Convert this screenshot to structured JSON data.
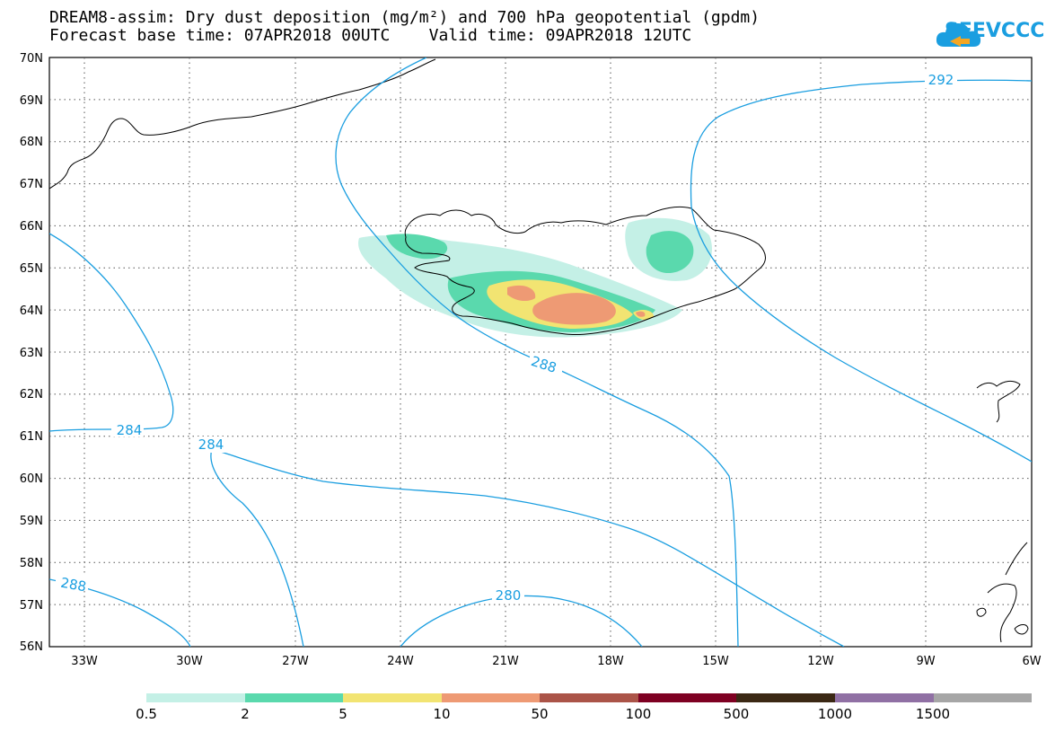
{
  "title": {
    "line1": "DREAM8-assim: Dry dust deposition (mg/m²) and 700 hPa geopotential (gpdm)",
    "line2": "Forecast base time: 07APR2018 00UTC    Valid time: 09APR2018 12UTC"
  },
  "logo": {
    "text": "SEEVCCC",
    "icon": "cloud-icon",
    "color": "#1a9ee0"
  },
  "map": {
    "lat_labels": [
      "70N",
      "69N",
      "68N",
      "67N",
      "66N",
      "65N",
      "64N",
      "63N",
      "62N",
      "61N",
      "60N",
      "59N",
      "58N",
      "57N",
      "56N"
    ],
    "lon_labels": [
      "33W",
      "30W",
      "27W",
      "24W",
      "21W",
      "18W",
      "15W",
      "12W",
      "9W",
      "6W"
    ],
    "contour_color": "#1a9ee0",
    "contour_labels": [
      "292",
      "288",
      "284",
      "284",
      "288",
      "280"
    ]
  },
  "legend": {
    "colors": [
      "#c4f0e6",
      "#5ad9ad",
      "#f2e472",
      "#ee9a74",
      "#ab5448",
      "#7e0022",
      "#3b2814",
      "#9070a4",
      "#a6a6a6"
    ],
    "labels": [
      "0.5",
      "2",
      "5",
      "10",
      "50",
      "100",
      "500",
      "1000",
      "1500"
    ]
  }
}
